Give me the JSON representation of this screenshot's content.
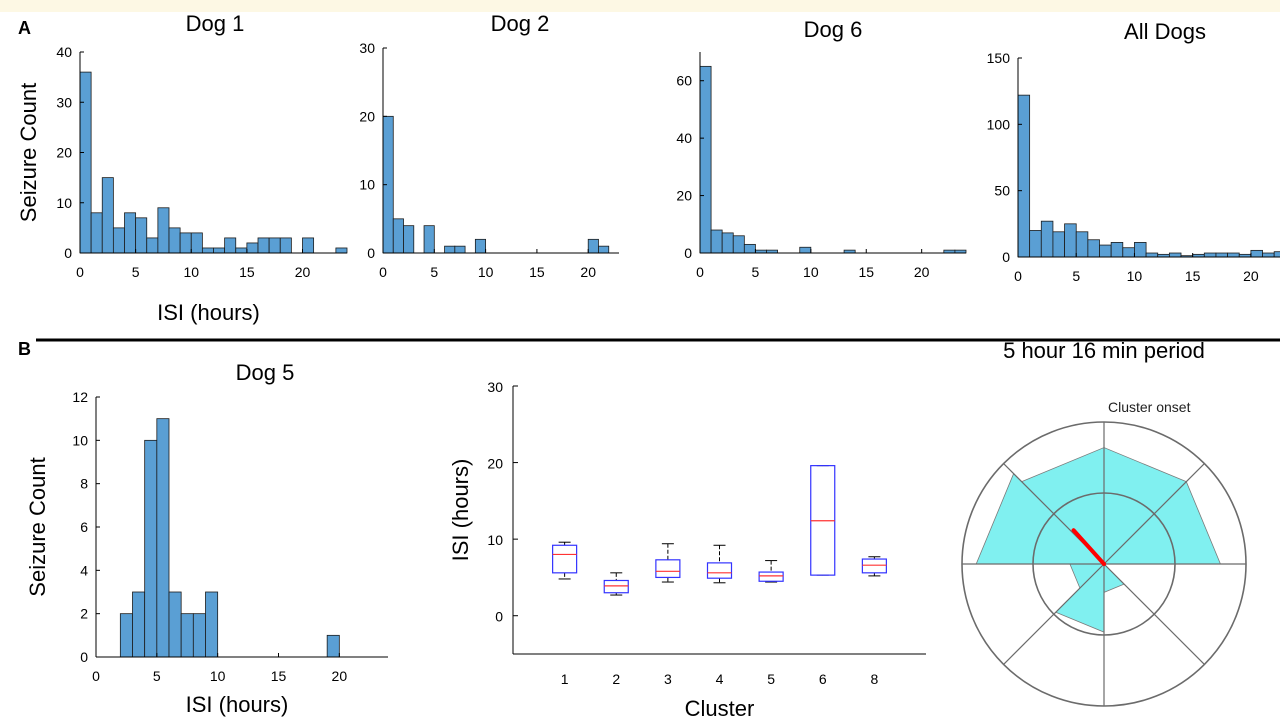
{
  "panels": {
    "a_label": "A",
    "b_label": "B"
  },
  "colors": {
    "bar_fill": "#5a9fd4",
    "box_outline": "#3333ff",
    "box_median": "#ff3333",
    "rose_fill": "#80f0f0",
    "mean_vector": "#ff0000",
    "divider": "#000000"
  },
  "chart_data": [
    {
      "type": "bar",
      "title": "Dog 1",
      "ylabel": "Seizure Count",
      "xlabel": "ISI (hours)",
      "bin_width": 1,
      "x": [
        0,
        1,
        2,
        3,
        4,
        5,
        6,
        7,
        8,
        9,
        10,
        11,
        12,
        13,
        14,
        15,
        16,
        17,
        18,
        19,
        20,
        21,
        22,
        23
      ],
      "values": [
        36,
        8,
        15,
        5,
        8,
        7,
        3,
        9,
        5,
        4,
        4,
        1,
        1,
        3,
        1,
        2,
        3,
        3,
        3,
        0,
        3,
        0,
        0,
        1
      ],
      "xlim": [
        0,
        24
      ],
      "ylim": [
        0,
        40
      ],
      "xticks": [
        0,
        5,
        10,
        15,
        20
      ],
      "yticks": [
        0,
        10,
        20,
        30,
        40
      ]
    },
    {
      "type": "bar",
      "title": "Dog 2",
      "ylabel": "",
      "xlabel": "",
      "bin_width": 1,
      "x": [
        0,
        1,
        2,
        3,
        4,
        5,
        6,
        7,
        8,
        9,
        10,
        11,
        12,
        13,
        14,
        15,
        16,
        17,
        18,
        19,
        20,
        21
      ],
      "values": [
        20,
        5,
        4,
        0,
        4,
        0,
        1,
        1,
        0,
        2,
        0,
        0,
        0,
        0,
        0,
        0,
        0,
        0,
        0,
        0,
        2,
        1
      ],
      "xlim": [
        0,
        23
      ],
      "ylim": [
        0,
        30
      ],
      "xticks": [
        0,
        5,
        10,
        15,
        20
      ],
      "yticks": [
        0,
        10,
        20,
        30
      ]
    },
    {
      "type": "bar",
      "title": "Dog 6",
      "ylabel": "",
      "xlabel": "",
      "bin_width": 1,
      "x": [
        0,
        1,
        2,
        3,
        4,
        5,
        6,
        7,
        8,
        9,
        10,
        11,
        12,
        13,
        14,
        15,
        16,
        17,
        18,
        19,
        20,
        21,
        22,
        23
      ],
      "values": [
        65,
        8,
        7,
        6,
        3,
        1,
        1,
        0,
        0,
        2,
        0,
        0,
        0,
        1,
        0,
        0,
        0,
        0,
        0,
        0,
        0,
        0,
        1,
        1
      ],
      "xlim": [
        0,
        24
      ],
      "ylim": [
        0,
        70
      ],
      "xticks": [
        0,
        5,
        10,
        15,
        20
      ],
      "yticks": [
        0,
        20,
        40,
        60
      ]
    },
    {
      "type": "bar",
      "title": "All Dogs",
      "ylabel": "",
      "xlabel": "",
      "bin_width": 1,
      "x": [
        0,
        1,
        2,
        3,
        4,
        5,
        6,
        7,
        8,
        9,
        10,
        11,
        12,
        13,
        14,
        15,
        16,
        17,
        18,
        19,
        20,
        21,
        22
      ],
      "values": [
        122,
        20,
        27,
        19,
        25,
        19,
        13,
        9,
        11,
        7,
        11,
        3,
        2,
        3,
        1,
        2,
        3,
        3,
        3,
        2,
        5,
        3,
        4
      ],
      "xlim": [
        0,
        22.5
      ],
      "ylim": [
        0,
        150
      ],
      "xticks": [
        0,
        5,
        10,
        15,
        20
      ],
      "yticks": [
        0,
        50,
        100,
        150
      ]
    },
    {
      "type": "bar",
      "title": "Dog 5",
      "ylabel": "Seizure Count",
      "xlabel": "ISI (hours)",
      "bin_width": 1,
      "x": [
        2,
        3,
        4,
        5,
        6,
        7,
        8,
        9,
        19
      ],
      "values": [
        2,
        3,
        10,
        11,
        3,
        2,
        2,
        3,
        1
      ],
      "xlim": [
        0,
        24
      ],
      "ylim": [
        0,
        12
      ],
      "xticks": [
        0,
        5,
        10,
        15,
        20
      ],
      "yticks": [
        0,
        2,
        4,
        6,
        8,
        10,
        12
      ]
    },
    {
      "type": "box",
      "title": "",
      "ylabel": "ISI (hours)",
      "xlabel": "Cluster",
      "categories": [
        "1",
        "2",
        "3",
        "4",
        "5",
        "6",
        "8"
      ],
      "boxes": [
        {
          "whisker_low": 4.8,
          "q1": 5.6,
          "median": 8.0,
          "q3": 9.2,
          "whisker_high": 9.6
        },
        {
          "whisker_low": 2.7,
          "q1": 3.0,
          "median": 3.9,
          "q3": 4.6,
          "whisker_high": 5.6
        },
        {
          "whisker_low": 4.4,
          "q1": 5.0,
          "median": 5.8,
          "q3": 7.3,
          "whisker_high": 9.4
        },
        {
          "whisker_low": 4.3,
          "q1": 4.9,
          "median": 5.6,
          "q3": 6.9,
          "whisker_high": 9.2
        },
        {
          "whisker_low": 4.4,
          "q1": 4.5,
          "median": 5.2,
          "q3": 5.7,
          "whisker_high": 7.2
        },
        {
          "whisker_low": 5.3,
          "q1": 5.3,
          "median": 12.4,
          "q3": 19.6,
          "whisker_high": 19.6
        },
        {
          "whisker_low": 5.2,
          "q1": 5.6,
          "median": 6.6,
          "q3": 7.4,
          "whisker_high": 7.7
        }
      ],
      "ylim": [
        -5,
        30
      ],
      "yticks": [
        0,
        10,
        20,
        30
      ]
    },
    {
      "type": "polar-histogram",
      "title": "5 hour 16 min period",
      "zero_label": "Cluster onset",
      "sector_count": 8,
      "rings": 2,
      "r_max": 1,
      "sector_values": [
        0.82,
        0.82,
        0.0,
        0.2,
        0.48,
        0.24,
        0.9,
        0.82
      ],
      "mean_vector_angle_deg": -42,
      "mean_vector_length": 0.32
    }
  ]
}
